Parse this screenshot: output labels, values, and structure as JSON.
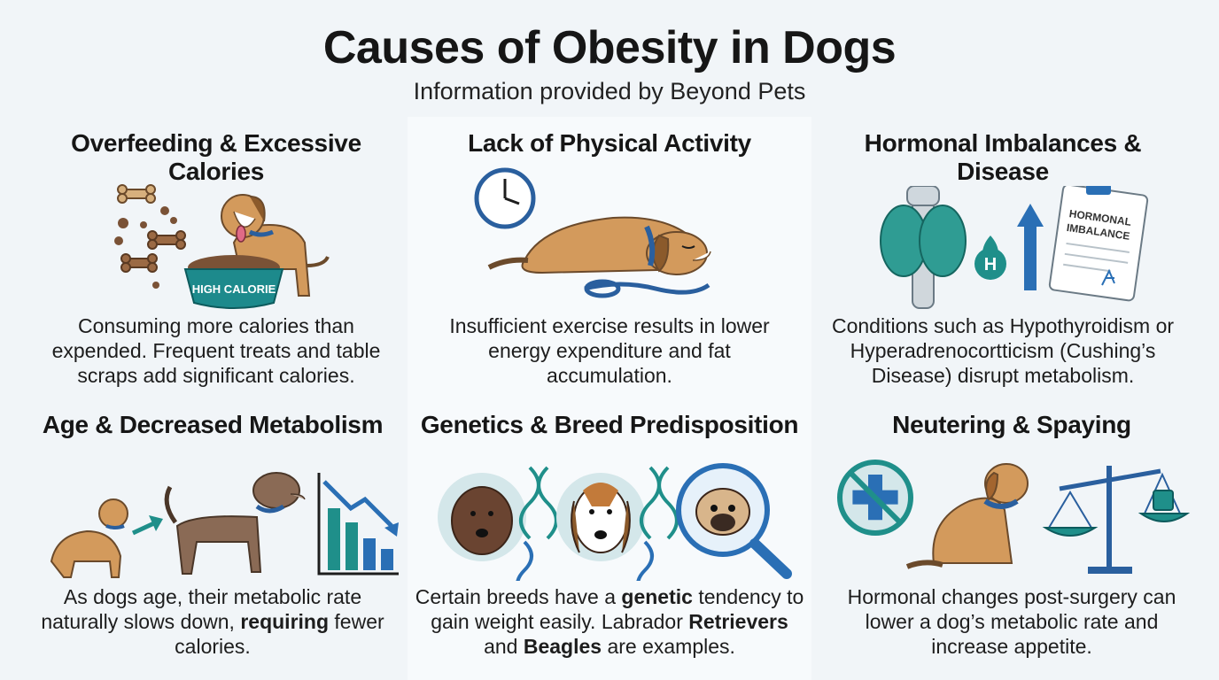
{
  "header": {
    "title": "Causes of Obesity in Dogs",
    "subtitle": "Information provided by Beyond Pets"
  },
  "cards": [
    {
      "title": "Overfeeding & Excessive Calories",
      "desc": "Consuming more calories than expended. Frequent treats and table scraps add significant calories.",
      "bowl_label": "HIGH CALORIE"
    },
    {
      "title": "Lack of Physical Activity",
      "desc": "Insufficient exercise results in lower energy expenditure and fat accumulation."
    },
    {
      "title": "Hormonal Imbalances & Disease",
      "desc": "Conditions such as Hypothyroidism or Hyperadrenocortticism (Cushing’s Disease) disrupt metabolism.",
      "clipboard_label_1": "HORMONAL",
      "clipboard_label_2": "IMBALANCE",
      "hormone_letter": "H"
    },
    {
      "title": "Age & Decreased Metabolism",
      "desc_1": "As dogs age, their metabolic rate naturally slows down, ",
      "desc_bold": "requiring",
      "desc_2": " fewer calories."
    },
    {
      "title": "Genetics & Breed Predisposition",
      "desc_1": "Certain breeds have a ",
      "desc_bold_1": "genetic",
      "desc_2": " tendency to gain weight easily. Labrador ",
      "desc_bold_2": "Retrievers",
      "desc_3": " and ",
      "desc_bold_3": "Beagles",
      "desc_4": " are examples."
    },
    {
      "title": "Neutering & Spaying",
      "desc": "Hormonal changes post-surgery can lower a dog’s metabolic rate and increase appetite."
    }
  ],
  "colors": {
    "teal": "#1f8f8a",
    "blue": "#2a6fb5",
    "dog_tan": "#d39a5c",
    "dog_brown": "#8a6a55",
    "collar": "#2a5f9e",
    "bowl": "#1d8a8c"
  }
}
